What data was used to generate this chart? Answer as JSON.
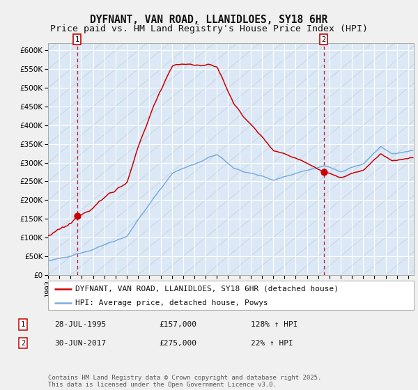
{
  "title": "DYFNANT, VAN ROAD, LLANIDLOES, SY18 6HR",
  "subtitle": "Price paid vs. HM Land Registry's House Price Index (HPI)",
  "ylim": [
    0,
    620000
  ],
  "yticks": [
    0,
    50000,
    100000,
    150000,
    200000,
    250000,
    300000,
    350000,
    400000,
    450000,
    500000,
    550000,
    600000
  ],
  "ytick_labels": [
    "£0",
    "£50K",
    "£100K",
    "£150K",
    "£200K",
    "£250K",
    "£300K",
    "£350K",
    "£400K",
    "£450K",
    "£500K",
    "£550K",
    "£600K"
  ],
  "xlim_start": 1993.0,
  "xlim_end": 2025.5,
  "sale1_year": 1995.57,
  "sale1_price": 157000,
  "sale2_year": 2017.5,
  "sale2_price": 275000,
  "sale_color": "#cc0000",
  "hpi_color": "#7aaedc",
  "background_color": "#f0f0f0",
  "plot_bg_color": "#dce8f5",
  "legend_label_red": "DYFNANT, VAN ROAD, LLANIDLOES, SY18 6HR (detached house)",
  "legend_label_blue": "HPI: Average price, detached house, Powys",
  "annotation1_label": "1",
  "annotation2_label": "2",
  "sale1_date": "28-JUL-1995",
  "sale1_pct": "128% ↑ HPI",
  "sale2_date": "30-JUN-2017",
  "sale2_pct": "22% ↑ HPI",
  "sale1_price_str": "£157,000",
  "sale2_price_str": "£275,000",
  "footer": "Contains HM Land Registry data © Crown copyright and database right 2025.\nThis data is licensed under the Open Government Licence v3.0.",
  "title_fontsize": 10.5,
  "subtitle_fontsize": 9.5,
  "tick_fontsize": 7.5,
  "legend_fontsize": 8,
  "annotation_fontsize": 8,
  "footer_fontsize": 6.5
}
